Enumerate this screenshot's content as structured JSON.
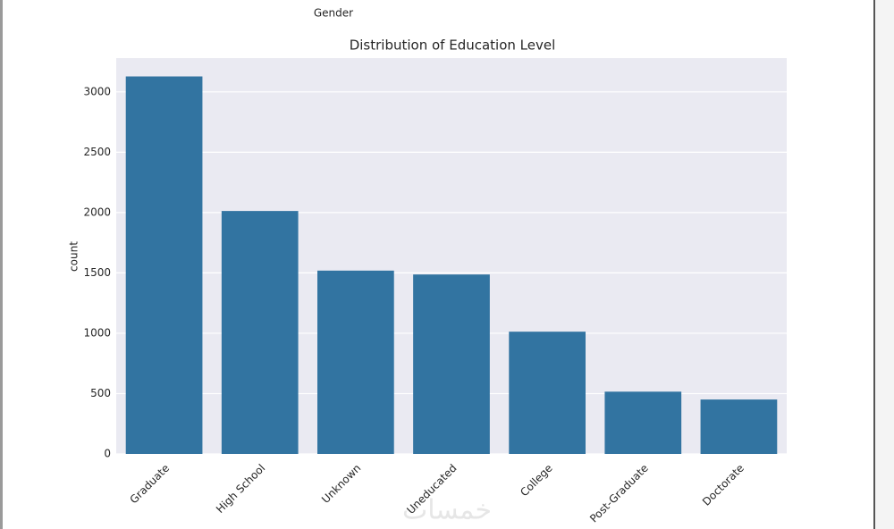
{
  "chart_data": {
    "type": "bar",
    "title": "Distribution of Education Level",
    "y_label": "count",
    "categories": [
      "Graduate",
      "High School",
      "Unknown",
      "Uneducated",
      "College",
      "Post-Graduate",
      "Doctorate"
    ],
    "values": [
      3128,
      2013,
      1519,
      1487,
      1013,
      516,
      451
    ],
    "color": "#3274a1",
    "ylim": [
      0,
      3280
    ],
    "yticks": [
      0,
      500,
      1000,
      1500,
      2000,
      2500,
      3000
    ],
    "grid": true
  },
  "previous_chart": {
    "x_label": "Gender"
  },
  "watermark": "خمسات"
}
